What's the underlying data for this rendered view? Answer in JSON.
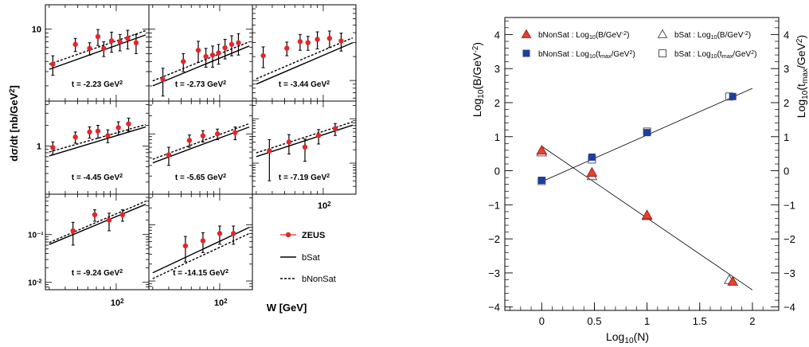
{
  "chart_data": [
    {
      "type": "scatter",
      "xlabel": "W [GeV]",
      "ylabel": "dσ/dt [nb/GeV²]",
      "x_scale": "log",
      "y_scale": "log",
      "x_tick_label": "10²",
      "legend": {
        "placement": "lower-right",
        "entries": [
          {
            "label": "ZEUS",
            "style": "red-points-with-errors"
          },
          {
            "label": "bSat",
            "style": "solid"
          },
          {
            "label": "bNonSat",
            "style": "dashed"
          }
        ]
      },
      "panels": [
        {
          "t_label": "t = -2.23 GeV²",
          "ylim": [
            1.3,
            20
          ],
          "points": [
            [
              32,
              3.7
            ],
            [
              48,
              6.5
            ],
            [
              62,
              5.8
            ],
            [
              72,
              8.1
            ],
            [
              80,
              5.8
            ],
            [
              92,
              7.2
            ],
            [
              107,
              7.0
            ],
            [
              123,
              7.7
            ],
            [
              143,
              6.8
            ]
          ],
          "errors": [
            1.0,
            1.2,
            1.0,
            1.8,
            1.2,
            2.0,
            1.6,
            2.0,
            1.8
          ],
          "bSat": [
            [
              30,
              3.2
            ],
            [
              170,
              8.5
            ]
          ],
          "bNonSat": [
            [
              30,
              3.7
            ],
            [
              170,
              9.6
            ]
          ]
        },
        {
          "t_label": "t = -2.73 GeV²",
          "ylim": [
            1.3,
            20
          ],
          "points": [
            [
              36,
              2.4
            ],
            [
              52,
              4.0
            ],
            [
              68,
              5.5
            ],
            [
              78,
              4.6
            ],
            [
              88,
              4.8
            ],
            [
              98,
              5.1
            ],
            [
              110,
              5.9
            ],
            [
              124,
              6.5
            ],
            [
              140,
              6.8
            ]
          ],
          "errors": [
            0.9,
            1.0,
            1.6,
            1.2,
            1.4,
            1.4,
            1.6,
            1.8,
            2.0
          ],
          "bSat": [
            [
              30,
              2.0
            ],
            [
              170,
              6.2
            ]
          ],
          "bNonSat": [
            [
              30,
              2.3
            ],
            [
              170,
              7.0
            ]
          ]
        },
        {
          "t_label": "t = -3.44 GeV²",
          "ylim": [
            0.55,
            9
          ],
          "points": [
            [
              34,
              2.05
            ],
            [
              52,
              2.55
            ],
            [
              66,
              3.1
            ],
            [
              76,
              3.0
            ],
            [
              90,
              3.3
            ],
            [
              112,
              3.4
            ],
            [
              138,
              3.15
            ]
          ],
          "errors": [
            0.6,
            0.5,
            0.7,
            0.6,
            0.8,
            0.8,
            0.8
          ],
          "bSat": [
            [
              30,
              0.9
            ],
            [
              170,
              3.0
            ]
          ],
          "bNonSat": [
            [
              30,
              1.05
            ],
            [
              170,
              3.45
            ]
          ]
        },
        {
          "t_label": "t = -4.45 GeV²",
          "ylim": [
            0.2,
            4.5
          ],
          "points": [
            [
              32,
              0.95
            ],
            [
              48,
              1.35
            ],
            [
              62,
              1.6
            ],
            [
              72,
              1.65
            ],
            [
              86,
              1.42
            ],
            [
              104,
              1.85
            ],
            [
              125,
              2.1
            ]
          ],
          "errors": [
            0.2,
            0.25,
            0.3,
            0.35,
            0.3,
            0.4,
            0.45
          ],
          "bSat": [
            [
              30,
              0.72
            ],
            [
              170,
              1.9
            ]
          ],
          "bNonSat": [
            [
              30,
              0.82
            ],
            [
              170,
              2.05
            ]
          ]
        },
        {
          "t_label": "t = -5.65 GeV²",
          "ylim": [
            0.1,
            3.5
          ],
          "points": [
            [
              40,
              0.45
            ],
            [
              58,
              0.78
            ],
            [
              74,
              0.93
            ],
            [
              96,
              1.0
            ],
            [
              132,
              1.05
            ]
          ],
          "errors": [
            0.15,
            0.18,
            0.2,
            0.2,
            0.25
          ],
          "bSat": [
            [
              30,
              0.33
            ],
            [
              170,
              1.3
            ]
          ],
          "bNonSat": [
            [
              30,
              0.38
            ],
            [
              170,
              1.48
            ]
          ]
        },
        {
          "t_label": "t = -7.19 GeV²",
          "ylim": [
            0.02,
            2.5
          ],
          "points": [
            [
              38,
              0.19
            ],
            [
              54,
              0.3
            ],
            [
              72,
              0.23
            ],
            [
              92,
              0.42
            ],
            [
              124,
              0.6
            ]
          ],
          "errors": [
            0.15,
            0.14,
            0.12,
            0.15,
            0.18
          ],
          "bSat": [
            [
              30,
              0.14
            ],
            [
              170,
              0.72
            ]
          ],
          "bNonSat": [
            [
              30,
              0.17
            ],
            [
              170,
              0.85
            ]
          ]
        },
        {
          "t_label": "t = -9.24 GeV²",
          "ylim": [
            0.007,
            0.7
          ],
          "points": [
            [
              46,
              0.12
            ],
            [
              68,
              0.26
            ],
            [
              88,
              0.2
            ],
            [
              112,
              0.26
            ]
          ],
          "errors": [
            0.06,
            0.07,
            0.08,
            0.07
          ],
          "bSat": [
            [
              30,
              0.062
            ],
            [
              170,
              0.43
            ]
          ],
          "bNonSat": [
            [
              30,
              0.068
            ],
            [
              170,
              0.5
            ]
          ]
        },
        {
          "t_label": "t = -14.15 GeV²",
          "ylim": [
            0.007,
            0.35
          ],
          "points": [
            [
              54,
              0.042
            ],
            [
              74,
              0.052
            ],
            [
              100,
              0.07
            ],
            [
              128,
              0.07
            ]
          ],
          "errors": [
            0.02,
            0.02,
            0.025,
            0.025
          ],
          "bSat": [
            [
              30,
              0.014
            ],
            [
              170,
              0.09
            ]
          ],
          "bNonSat": [
            [
              30,
              0.011
            ],
            [
              170,
              0.07
            ]
          ]
        }
      ]
    },
    {
      "type": "scatter",
      "xlabel": "Log₁₀(N)",
      "ylabel": "Log₁₀(B/GeV⁻²)",
      "y2label": "Log₁₀(t_max/GeV²)",
      "xlim": [
        -0.35,
        2.25
      ],
      "ylim": [
        -4.1,
        4.5
      ],
      "xticks": [
        "0",
        "0.5",
        "1",
        "1.5",
        "2"
      ],
      "yticks": [
        "−4",
        "−3",
        "−2",
        "−1",
        "0",
        "1",
        "2",
        "3",
        "4"
      ],
      "legend": {
        "placement": "top",
        "entries": [
          "bNonSat : Log₁₀(B/GeV⁻²)",
          "bSat : Log₁₀(B/GeV⁻²)",
          "bNonSat : Log₁₀(t_max/GeV²)",
          "bSat : Log₁₀(t_max/GeV²)"
        ]
      },
      "series": [
        {
          "name": "bNonSat : Log₁₀(B/GeV⁻²)",
          "marker": "filled-triangle",
          "color": "#e8412f",
          "x": [
            0,
            0.477,
            1.0,
            1.813
          ],
          "y": [
            0.6,
            -0.05,
            -1.3,
            -3.25
          ]
        },
        {
          "name": "bSat : Log₁₀(B/GeV⁻²)",
          "marker": "open-triangle",
          "x": [
            0,
            0.477,
            1.0,
            1.78
          ],
          "y": [
            0.55,
            -0.15,
            -1.32,
            -3.2
          ]
        },
        {
          "name": "bNonSat : Log₁₀(t_max/GeV²)",
          "marker": "filled-square",
          "color": "#1f3f9f",
          "x": [
            0,
            0.477,
            1.0,
            1.813
          ],
          "y": [
            -0.28,
            0.4,
            1.12,
            2.18
          ]
        },
        {
          "name": "bSat : Log₁₀(t_max/GeV²)",
          "marker": "open-square",
          "x": [
            0,
            0.477,
            1.0,
            1.78
          ],
          "y": [
            -0.3,
            0.33,
            1.15,
            2.18
          ]
        }
      ],
      "fit_lines": [
        {
          "x": [
            0,
            2.0
          ],
          "y": [
            0.72,
            -3.5
          ]
        },
        {
          "x": [
            0,
            2.0
          ],
          "y": [
            -0.32,
            2.42
          ]
        }
      ]
    }
  ]
}
